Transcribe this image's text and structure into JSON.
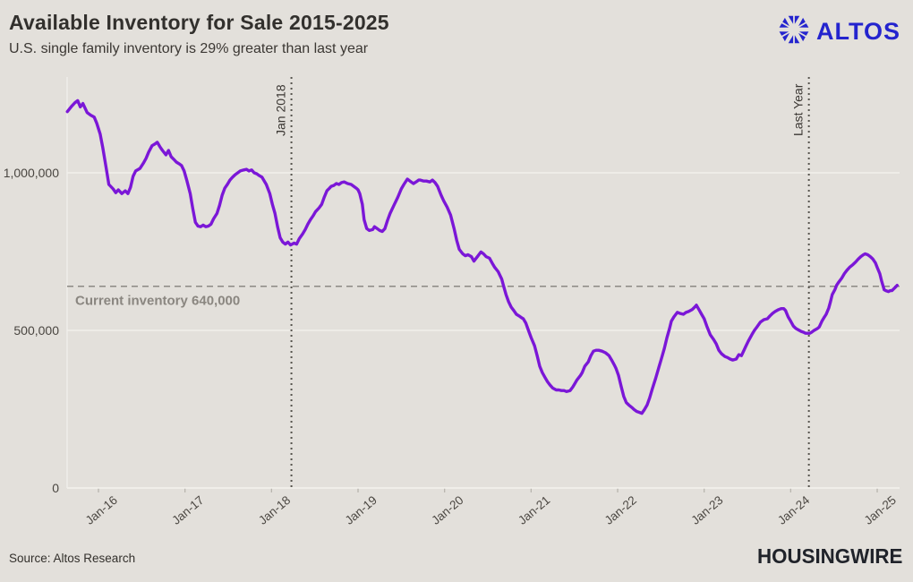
{
  "header": {
    "title": "Available Inventory for Sale 2015-2025",
    "subtitle": "U.S. single family inventory is 29% greater than last year",
    "logo_text": "ALTOS",
    "logo_color": "#2424ce"
  },
  "footer": {
    "source": "Source: Altos Research",
    "brand": "HOUSINGWIRE"
  },
  "chart_data": {
    "type": "line",
    "title": "Available Inventory for Sale 2015-2025",
    "series_name": "U.S. single family available inventory",
    "values_in": "thousands of homes",
    "line_color": "#7b17d7",
    "grid_color": "#f1efeb",
    "axis_label_color": "#4a4641",
    "background": "#e3e0db",
    "x_range": [
      2015.6,
      2025.3
    ],
    "y_range_thousands": [
      0,
      1300
    ],
    "y_axis": {
      "ticks": [
        {
          "v": 0,
          "label": "0"
        },
        {
          "v": 500,
          "label": "500,000"
        },
        {
          "v": 1000,
          "label": "1,000,000"
        }
      ]
    },
    "x_axis": {
      "ticks": [
        {
          "year": 2016,
          "label": "Jan-16"
        },
        {
          "year": 2017,
          "label": "Jan-17"
        },
        {
          "year": 2018,
          "label": "Jan-18"
        },
        {
          "year": 2019,
          "label": "Jan-19"
        },
        {
          "year": 2020,
          "label": "Jan-20"
        },
        {
          "year": 2021,
          "label": "Jan-21"
        },
        {
          "year": 2022,
          "label": "Jan-22"
        },
        {
          "year": 2023,
          "label": "Jan-23"
        },
        {
          "year": 2024,
          "label": "Jan-24"
        },
        {
          "year": 2025,
          "label": "Jan-25"
        }
      ]
    },
    "annotations": {
      "current_inventory": {
        "value_thousands": 640,
        "label": "Current inventory 640,000",
        "line_color": "#8c8984",
        "text_color": "#8a8680"
      },
      "vlines": [
        {
          "year": 2018.23,
          "label": "Jan 2018",
          "color": "#57544e"
        },
        {
          "year": 2024.21,
          "label": "Last Year",
          "color": "#57544e"
        }
      ]
    },
    "points": [
      [
        2015.64,
        1194
      ],
      [
        2015.69,
        1211
      ],
      [
        2015.73,
        1223
      ],
      [
        2015.76,
        1229
      ],
      [
        2015.79,
        1209
      ],
      [
        2015.82,
        1220
      ],
      [
        2015.87,
        1191
      ],
      [
        2015.91,
        1183
      ],
      [
        2015.95,
        1177
      ],
      [
        2015.98,
        1157
      ],
      [
        2016.02,
        1123
      ],
      [
        2016.05,
        1080
      ],
      [
        2016.09,
        1014
      ],
      [
        2016.12,
        963
      ],
      [
        2016.17,
        949
      ],
      [
        2016.2,
        937
      ],
      [
        2016.23,
        946
      ],
      [
        2016.27,
        934
      ],
      [
        2016.31,
        943
      ],
      [
        2016.34,
        934
      ],
      [
        2016.37,
        954
      ],
      [
        2016.4,
        989
      ],
      [
        2016.43,
        1006
      ],
      [
        2016.48,
        1014
      ],
      [
        2016.52,
        1031
      ],
      [
        2016.55,
        1046
      ],
      [
        2016.58,
        1066
      ],
      [
        2016.62,
        1086
      ],
      [
        2016.65,
        1091
      ],
      [
        2016.68,
        1097
      ],
      [
        2016.71,
        1083
      ],
      [
        2016.74,
        1071
      ],
      [
        2016.78,
        1057
      ],
      [
        2016.81,
        1071
      ],
      [
        2016.84,
        1051
      ],
      [
        2016.87,
        1043
      ],
      [
        2016.9,
        1034
      ],
      [
        2016.93,
        1029
      ],
      [
        2016.96,
        1023
      ],
      [
        2016.99,
        1006
      ],
      [
        2017.02,
        977
      ],
      [
        2017.06,
        934
      ],
      [
        2017.09,
        886
      ],
      [
        2017.12,
        843
      ],
      [
        2017.15,
        831
      ],
      [
        2017.18,
        829
      ],
      [
        2017.21,
        834
      ],
      [
        2017.24,
        829
      ],
      [
        2017.27,
        831
      ],
      [
        2017.3,
        837
      ],
      [
        2017.33,
        854
      ],
      [
        2017.37,
        871
      ],
      [
        2017.4,
        897
      ],
      [
        2017.43,
        929
      ],
      [
        2017.46,
        951
      ],
      [
        2017.49,
        963
      ],
      [
        2017.52,
        977
      ],
      [
        2017.55,
        986
      ],
      [
        2017.58,
        994
      ],
      [
        2017.61,
        1000
      ],
      [
        2017.64,
        1006
      ],
      [
        2017.68,
        1009
      ],
      [
        2017.71,
        1011
      ],
      [
        2017.74,
        1006
      ],
      [
        2017.77,
        1009
      ],
      [
        2017.8,
        1000
      ],
      [
        2017.83,
        997
      ],
      [
        2017.86,
        991
      ],
      [
        2017.89,
        986
      ],
      [
        2017.91,
        977
      ],
      [
        2017.94,
        963
      ],
      [
        2017.98,
        934
      ],
      [
        2018.01,
        900
      ],
      [
        2018.04,
        871
      ],
      [
        2018.07,
        829
      ],
      [
        2018.1,
        794
      ],
      [
        2018.13,
        780
      ],
      [
        2018.16,
        774
      ],
      [
        2018.19,
        780
      ],
      [
        2018.22,
        771
      ],
      [
        2018.26,
        777
      ],
      [
        2018.29,
        774
      ],
      [
        2018.32,
        791
      ],
      [
        2018.36,
        806
      ],
      [
        2018.39,
        820
      ],
      [
        2018.42,
        837
      ],
      [
        2018.45,
        851
      ],
      [
        2018.48,
        863
      ],
      [
        2018.51,
        877
      ],
      [
        2018.55,
        889
      ],
      [
        2018.58,
        900
      ],
      [
        2018.61,
        923
      ],
      [
        2018.64,
        943
      ],
      [
        2018.67,
        951
      ],
      [
        2018.69,
        957
      ],
      [
        2018.72,
        960
      ],
      [
        2018.75,
        966
      ],
      [
        2018.78,
        963
      ],
      [
        2018.81,
        969
      ],
      [
        2018.84,
        971
      ],
      [
        2018.88,
        966
      ],
      [
        2018.92,
        963
      ],
      [
        2018.95,
        957
      ],
      [
        2018.98,
        951
      ],
      [
        2019.0,
        946
      ],
      [
        2019.02,
        934
      ],
      [
        2019.05,
        900
      ],
      [
        2019.07,
        851
      ],
      [
        2019.1,
        823
      ],
      [
        2019.13,
        817
      ],
      [
        2019.17,
        820
      ],
      [
        2019.19,
        829
      ],
      [
        2019.22,
        823
      ],
      [
        2019.25,
        817
      ],
      [
        2019.28,
        814
      ],
      [
        2019.31,
        823
      ],
      [
        2019.34,
        849
      ],
      [
        2019.37,
        871
      ],
      [
        2019.41,
        894
      ],
      [
        2019.46,
        923
      ],
      [
        2019.5,
        949
      ],
      [
        2019.53,
        963
      ],
      [
        2019.57,
        980
      ],
      [
        2019.6,
        974
      ],
      [
        2019.64,
        966
      ],
      [
        2019.67,
        971
      ],
      [
        2019.7,
        977
      ],
      [
        2019.72,
        977
      ],
      [
        2019.76,
        974
      ],
      [
        2019.79,
        974
      ],
      [
        2019.83,
        971
      ],
      [
        2019.86,
        977
      ],
      [
        2019.89,
        969
      ],
      [
        2019.92,
        957
      ],
      [
        2019.96,
        929
      ],
      [
        2019.99,
        911
      ],
      [
        2020.03,
        891
      ],
      [
        2020.07,
        866
      ],
      [
        2020.11,
        823
      ],
      [
        2020.14,
        786
      ],
      [
        2020.17,
        757
      ],
      [
        2020.21,
        743
      ],
      [
        2020.24,
        737
      ],
      [
        2020.27,
        740
      ],
      [
        2020.31,
        734
      ],
      [
        2020.34,
        720
      ],
      [
        2020.38,
        734
      ],
      [
        2020.42,
        749
      ],
      [
        2020.45,
        743
      ],
      [
        2020.48,
        734
      ],
      [
        2020.52,
        729
      ],
      [
        2020.55,
        714
      ],
      [
        2020.58,
        700
      ],
      [
        2020.62,
        686
      ],
      [
        2020.66,
        663
      ],
      [
        2020.68,
        643
      ],
      [
        2020.71,
        614
      ],
      [
        2020.74,
        591
      ],
      [
        2020.77,
        574
      ],
      [
        2020.8,
        563
      ],
      [
        2020.83,
        551
      ],
      [
        2020.86,
        546
      ],
      [
        2020.89,
        540
      ],
      [
        2020.91,
        537
      ],
      [
        2020.94,
        523
      ],
      [
        2020.97,
        500
      ],
      [
        2021.0,
        477
      ],
      [
        2021.04,
        451
      ],
      [
        2021.07,
        420
      ],
      [
        2021.1,
        386
      ],
      [
        2021.13,
        366
      ],
      [
        2021.16,
        351
      ],
      [
        2021.19,
        337
      ],
      [
        2021.22,
        326
      ],
      [
        2021.25,
        317
      ],
      [
        2021.29,
        311
      ],
      [
        2021.32,
        311
      ],
      [
        2021.35,
        309
      ],
      [
        2021.38,
        309
      ],
      [
        2021.41,
        306
      ],
      [
        2021.45,
        309
      ],
      [
        2021.48,
        320
      ],
      [
        2021.5,
        329
      ],
      [
        2021.53,
        343
      ],
      [
        2021.57,
        357
      ],
      [
        2021.59,
        366
      ],
      [
        2021.62,
        386
      ],
      [
        2021.66,
        400
      ],
      [
        2021.69,
        420
      ],
      [
        2021.72,
        434
      ],
      [
        2021.75,
        437
      ],
      [
        2021.78,
        437
      ],
      [
        2021.82,
        434
      ],
      [
        2021.86,
        429
      ],
      [
        2021.9,
        420
      ],
      [
        2021.93,
        406
      ],
      [
        2021.96,
        391
      ],
      [
        2021.98,
        380
      ],
      [
        2022.01,
        357
      ],
      [
        2022.04,
        323
      ],
      [
        2022.07,
        291
      ],
      [
        2022.1,
        271
      ],
      [
        2022.13,
        263
      ],
      [
        2022.17,
        254
      ],
      [
        2022.19,
        249
      ],
      [
        2022.22,
        243
      ],
      [
        2022.25,
        240
      ],
      [
        2022.28,
        237
      ],
      [
        2022.31,
        249
      ],
      [
        2022.34,
        263
      ],
      [
        2022.37,
        286
      ],
      [
        2022.4,
        314
      ],
      [
        2022.44,
        349
      ],
      [
        2022.48,
        386
      ],
      [
        2022.51,
        414
      ],
      [
        2022.54,
        443
      ],
      [
        2022.57,
        477
      ],
      [
        2022.6,
        506
      ],
      [
        2022.62,
        529
      ],
      [
        2022.65,
        543
      ],
      [
        2022.69,
        557
      ],
      [
        2022.72,
        554
      ],
      [
        2022.76,
        551
      ],
      [
        2022.79,
        557
      ],
      [
        2022.82,
        560
      ],
      [
        2022.86,
        566
      ],
      [
        2022.89,
        574
      ],
      [
        2022.91,
        580
      ],
      [
        2022.94,
        566
      ],
      [
        2022.97,
        551
      ],
      [
        2023.0,
        537
      ],
      [
        2023.03,
        514
      ],
      [
        2023.07,
        486
      ],
      [
        2023.11,
        471
      ],
      [
        2023.14,
        457
      ],
      [
        2023.17,
        437
      ],
      [
        2023.2,
        426
      ],
      [
        2023.24,
        417
      ],
      [
        2023.27,
        414
      ],
      [
        2023.3,
        409
      ],
      [
        2023.33,
        406
      ],
      [
        2023.37,
        409
      ],
      [
        2023.4,
        423
      ],
      [
        2023.43,
        420
      ],
      [
        2023.45,
        431
      ],
      [
        2023.48,
        449
      ],
      [
        2023.51,
        466
      ],
      [
        2023.55,
        486
      ],
      [
        2023.58,
        500
      ],
      [
        2023.61,
        511
      ],
      [
        2023.65,
        526
      ],
      [
        2023.69,
        534
      ],
      [
        2023.73,
        537
      ],
      [
        2023.76,
        546
      ],
      [
        2023.79,
        554
      ],
      [
        2023.82,
        560
      ],
      [
        2023.86,
        566
      ],
      [
        2023.89,
        569
      ],
      [
        2023.92,
        569
      ],
      [
        2023.94,
        563
      ],
      [
        2023.97,
        543
      ],
      [
        2024.0,
        529
      ],
      [
        2024.03,
        514
      ],
      [
        2024.06,
        506
      ],
      [
        2024.1,
        500
      ],
      [
        2024.12,
        497
      ],
      [
        2024.15,
        494
      ],
      [
        2024.17,
        491
      ],
      [
        2024.2,
        491
      ],
      [
        2024.22,
        491
      ],
      [
        2024.24,
        494
      ],
      [
        2024.27,
        500
      ],
      [
        2024.31,
        506
      ],
      [
        2024.33,
        511
      ],
      [
        2024.36,
        529
      ],
      [
        2024.39,
        543
      ],
      [
        2024.41,
        551
      ],
      [
        2024.44,
        571
      ],
      [
        2024.46,
        591
      ],
      [
        2024.48,
        614
      ],
      [
        2024.51,
        629
      ],
      [
        2024.53,
        643
      ],
      [
        2024.55,
        651
      ],
      [
        2024.59,
        666
      ],
      [
        2024.62,
        680
      ],
      [
        2024.65,
        691
      ],
      [
        2024.68,
        700
      ],
      [
        2024.72,
        709
      ],
      [
        2024.75,
        717
      ],
      [
        2024.78,
        726
      ],
      [
        2024.81,
        734
      ],
      [
        2024.84,
        740
      ],
      [
        2024.86,
        743
      ],
      [
        2024.89,
        740
      ],
      [
        2024.92,
        734
      ],
      [
        2024.95,
        726
      ],
      [
        2024.98,
        714
      ],
      [
        2025.0,
        700
      ],
      [
        2025.03,
        680
      ],
      [
        2025.05,
        657
      ],
      [
        2025.08,
        629
      ],
      [
        2025.1,
        626
      ],
      [
        2025.13,
        623
      ],
      [
        2025.15,
        626
      ],
      [
        2025.17,
        626
      ],
      [
        2025.21,
        637
      ],
      [
        2025.23,
        643
      ]
    ]
  }
}
